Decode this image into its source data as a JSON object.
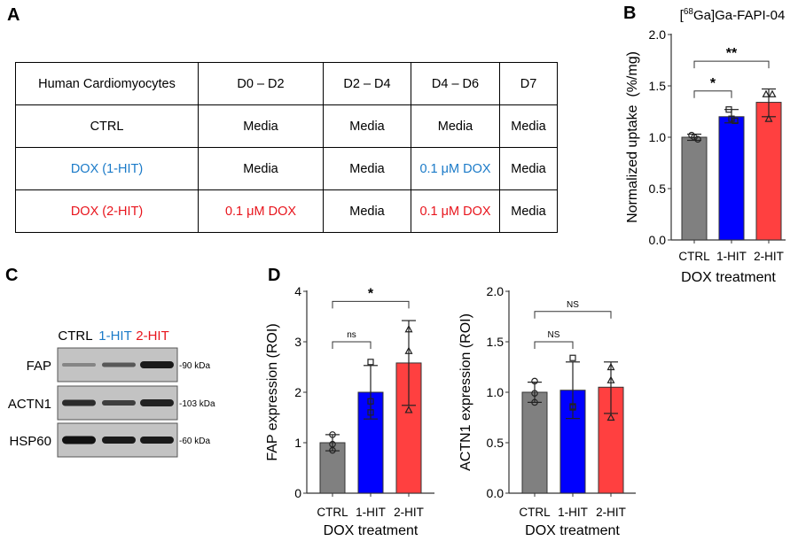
{
  "panels": {
    "a": "A",
    "b": "B",
    "c": "C",
    "d": "D"
  },
  "colors": {
    "ctrl": "#808080",
    "hit1": "#0000ff",
    "hit2": "#ff4040",
    "blue_text": "#1a7ac8",
    "red_text": "#e8141c"
  },
  "table": {
    "header": [
      "Human Cardiomyocytes",
      "D0 – D2",
      "D2 – D4",
      "D4 – D6",
      "D7"
    ],
    "rows": [
      {
        "cells": [
          "CTRL",
          "Media",
          "Media",
          "Media",
          "Media"
        ],
        "colors": [
          "#000",
          "#000",
          "#000",
          "#000",
          "#000"
        ]
      },
      {
        "cells": [
          "DOX (1-HIT)",
          "Media",
          "Media",
          "0.1 μM DOX",
          "Media"
        ],
        "colors": [
          "#1a7ac8",
          "#000",
          "#000",
          "#1a7ac8",
          "#000"
        ]
      },
      {
        "cells": [
          "DOX (2-HIT)",
          "0.1 μM DOX",
          "Media",
          "0.1 μM DOX",
          "Media"
        ],
        "colors": [
          "#e8141c",
          "#e8141c",
          "#000",
          "#e8141c",
          "#000"
        ]
      }
    ]
  },
  "blot": {
    "lanes": [
      "CTRL",
      "1-HIT",
      "2-HIT"
    ],
    "rows": [
      {
        "protein": "FAP",
        "marker": "-90 kDa"
      },
      {
        "protein": "ACTN1",
        "marker": "-103 kDa"
      },
      {
        "protein": "HSP60",
        "marker": "-60 kDa"
      }
    ]
  },
  "chart_data": [
    {
      "type": "bar",
      "panel": "B",
      "title_pre": "[",
      "title_sup": "68",
      "title_post": "Ga]Ga-FAPI-04",
      "categories": [
        "CTRL",
        "1-HIT",
        "2-HIT"
      ],
      "values": [
        1.0,
        1.2,
        1.34
      ],
      "errors": [
        [
          0.97,
          1.03
        ],
        [
          1.14,
          1.27
        ],
        [
          1.2,
          1.47
        ]
      ],
      "points": [
        [
          1.02,
          0.98,
          1.0
        ],
        [
          1.27,
          1.16,
          1.18
        ],
        [
          1.42,
          1.42,
          1.18
        ]
      ],
      "markers": [
        "circle",
        "square",
        "triangle"
      ],
      "xlabel": "DOX treatment",
      "ylabel": "Normalized uptake  (%/mg)",
      "ylim": [
        0,
        2.0
      ],
      "yticks": [
        "0.0",
        "0.5",
        "1.0",
        "1.5",
        "2.0"
      ],
      "brackets": [
        {
          "from": 0,
          "to": 1,
          "y": 1.45,
          "label": "*"
        },
        {
          "from": 0,
          "to": 2,
          "y": 1.74,
          "label": "**"
        }
      ]
    },
    {
      "type": "bar",
      "panel": "D",
      "categories": [
        "CTRL",
        "1-HIT",
        "2-HIT"
      ],
      "values": [
        1.0,
        2.0,
        2.58
      ],
      "errors": [
        [
          0.84,
          1.16
        ],
        [
          1.47,
          2.53
        ],
        [
          1.74,
          3.42
        ]
      ],
      "points": [
        [
          1.16,
          0.97,
          0.85
        ],
        [
          2.6,
          1.82,
          1.6
        ],
        [
          3.25,
          2.82,
          1.65
        ]
      ],
      "markers": [
        "circle",
        "square",
        "triangle"
      ],
      "xlabel": "DOX treatment",
      "ylabel": "FAP expression (ROI)",
      "ylim": [
        0,
        4
      ],
      "yticks": [
        "0",
        "1",
        "2",
        "3",
        "4"
      ],
      "brackets": [
        {
          "from": 0,
          "to": 1,
          "y": 3.0,
          "label": "ns"
        },
        {
          "from": 0,
          "to": 2,
          "y": 3.8,
          "label": "*"
        }
      ]
    },
    {
      "type": "bar",
      "panel": "D",
      "categories": [
        "CTRL",
        "1-HIT",
        "2-HIT"
      ],
      "values": [
        1.0,
        1.02,
        1.05
      ],
      "errors": [
        [
          0.9,
          1.1
        ],
        [
          0.74,
          1.3
        ],
        [
          0.79,
          1.3
        ]
      ],
      "points": [
        [
          1.11,
          0.99,
          0.9
        ],
        [
          1.34,
          0.86,
          0.85
        ],
        [
          1.25,
          1.12,
          0.75
        ]
      ],
      "markers": [
        "circle",
        "square",
        "triangle"
      ],
      "xlabel": "DOX treatment",
      "ylabel": "ACTN1 expression (ROI)",
      "ylim": [
        0,
        2.0
      ],
      "yticks": [
        "0.0",
        "0.5",
        "1.0",
        "1.5",
        "2.0"
      ],
      "brackets": [
        {
          "from": 0,
          "to": 1,
          "y": 1.5,
          "label": "NS"
        },
        {
          "from": 0,
          "to": 2,
          "y": 1.8,
          "label": "NS"
        }
      ]
    }
  ]
}
